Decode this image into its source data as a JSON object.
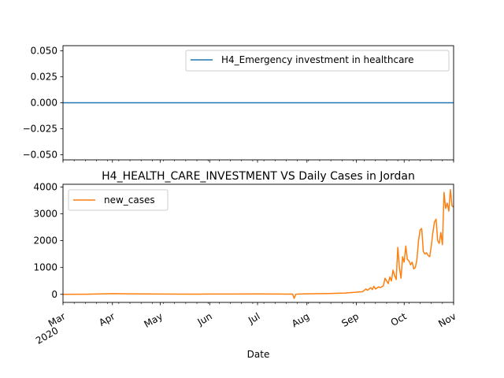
{
  "chart_data": [
    {
      "type": "line",
      "title": "",
      "xlabel": "",
      "ylabel": "",
      "ylim": [
        -0.055,
        0.055
      ],
      "yticks": [
        "0.050",
        "0.025",
        "0.000",
        "−0.025",
        "−0.050"
      ],
      "ytick_values": [
        0.05,
        0.025,
        0.0,
        -0.025,
        -0.05
      ],
      "legend_position": "top-right",
      "series": [
        {
          "name": "H4_Emergency investment in healthcare",
          "color": "#1f77b4",
          "x": [
            "2020-03-01",
            "2020-11-01"
          ],
          "values": [
            0,
            0
          ]
        }
      ]
    },
    {
      "type": "line",
      "title": "H4_HEALTH_CARE_INVESTMENT VS Daily Cases in Jordan",
      "xlabel": "Date",
      "ylabel": "",
      "ylim": [
        -300,
        4100
      ],
      "yticks": [
        "0",
        "1000",
        "2000",
        "3000",
        "4000"
      ],
      "ytick_values": [
        0,
        1000,
        2000,
        3000,
        4000
      ],
      "xticks": [
        {
          "date": "2020-03-01",
          "label": "Mar",
          "sublabel": "2020"
        },
        {
          "date": "2020-04-01",
          "label": "Apr"
        },
        {
          "date": "2020-05-01",
          "label": "May"
        },
        {
          "date": "2020-06-01",
          "label": "Jun"
        },
        {
          "date": "2020-07-01",
          "label": "Jul"
        },
        {
          "date": "2020-08-01",
          "label": "Aug"
        },
        {
          "date": "2020-09-01",
          "label": "Sep"
        },
        {
          "date": "2020-10-01",
          "label": "Oct"
        },
        {
          "date": "2020-11-01",
          "label": "Nov"
        }
      ],
      "legend_position": "top-left",
      "series": [
        {
          "name": "new_cases",
          "color": "#ff7f0e",
          "x": [
            "2020-03-01",
            "2020-03-15",
            "2020-03-25",
            "2020-04-01",
            "2020-04-10",
            "2020-04-20",
            "2020-05-01",
            "2020-05-15",
            "2020-06-01",
            "2020-06-15",
            "2020-07-01",
            "2020-07-15",
            "2020-07-20",
            "2020-07-23",
            "2020-07-24",
            "2020-07-25",
            "2020-07-27",
            "2020-08-01",
            "2020-08-10",
            "2020-08-15",
            "2020-08-20",
            "2020-08-25",
            "2020-09-01",
            "2020-09-05",
            "2020-09-07",
            "2020-09-08",
            "2020-09-10",
            "2020-09-11",
            "2020-09-12",
            "2020-09-13",
            "2020-09-15",
            "2020-09-16",
            "2020-09-18",
            "2020-09-19",
            "2020-09-21",
            "2020-09-22",
            "2020-09-23",
            "2020-09-24",
            "2020-09-25",
            "2020-09-26",
            "2020-09-27",
            "2020-09-28",
            "2020-09-29",
            "2020-09-30",
            "2020-10-01",
            "2020-10-02",
            "2020-10-03",
            "2020-10-04",
            "2020-10-05",
            "2020-10-06",
            "2020-10-07",
            "2020-10-08",
            "2020-10-09",
            "2020-10-10",
            "2020-10-11",
            "2020-10-12",
            "2020-10-13",
            "2020-10-14",
            "2020-10-15",
            "2020-10-16",
            "2020-10-17",
            "2020-10-18",
            "2020-10-19",
            "2020-10-20",
            "2020-10-21",
            "2020-10-22",
            "2020-10-23",
            "2020-10-24",
            "2020-10-25",
            "2020-10-26",
            "2020-10-27",
            "2020-10-28",
            "2020-10-29",
            "2020-10-30",
            "2020-10-31",
            "2020-11-01"
          ],
          "values": [
            0,
            5,
            15,
            25,
            20,
            15,
            10,
            8,
            10,
            12,
            15,
            10,
            8,
            10,
            -150,
            5,
            10,
            20,
            25,
            30,
            40,
            50,
            80,
            100,
            200,
            150,
            250,
            180,
            300,
            200,
            280,
            250,
            320,
            600,
            400,
            650,
            500,
            900,
            700,
            550,
            1750,
            1000,
            600,
            1400,
            1200,
            1800,
            1300,
            1250,
            1100,
            1200,
            950,
            1000,
            1300,
            2000,
            2400,
            2450,
            1600,
            1500,
            1550,
            1450,
            1400,
            1800,
            2300,
            2700,
            2800,
            2000,
            1900,
            2300,
            1850,
            3800,
            3200,
            3400,
            3100,
            3900,
            3300,
            3250
          ]
        }
      ]
    }
  ]
}
